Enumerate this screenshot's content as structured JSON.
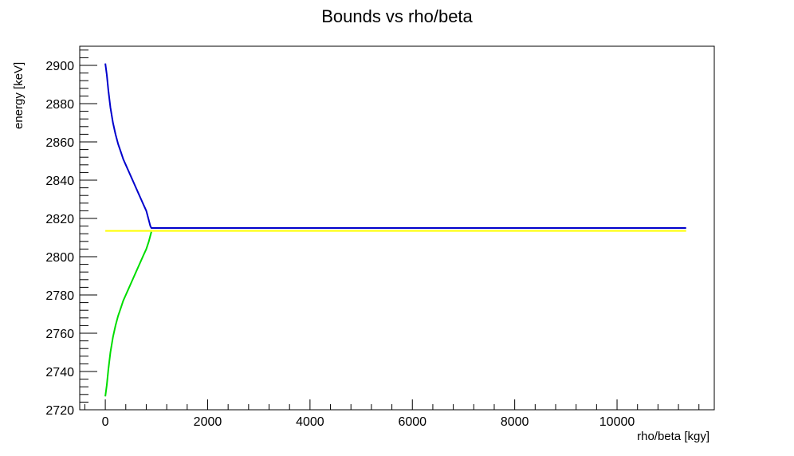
{
  "chart_data": {
    "type": "line",
    "title": "Bounds vs rho/beta",
    "xlabel": "rho/beta [kgy]",
    "ylabel": "energy [keV]",
    "xlim": [
      -500,
      11900
    ],
    "ylim": [
      2720,
      2910
    ],
    "x_ticks": [
      0,
      2000,
      4000,
      6000,
      8000,
      10000
    ],
    "y_ticks": [
      2720,
      2740,
      2760,
      2780,
      2800,
      2820,
      2840,
      2860,
      2880,
      2900
    ],
    "grid": false,
    "legend": "none",
    "series": [
      {
        "color": "#0000cc",
        "x": [
          0,
          30,
          60,
          100,
          150,
          200,
          250,
          300,
          350,
          400,
          450,
          500,
          550,
          600,
          650,
          700,
          750,
          800,
          850,
          880,
          900,
          1500,
          3000,
          5000,
          7000,
          9000,
          11350
        ],
        "y": [
          2901,
          2895,
          2887,
          2878,
          2870,
          2864,
          2859,
          2855,
          2851,
          2848,
          2845,
          2842,
          2839,
          2836,
          2833,
          2830,
          2827,
          2824,
          2819,
          2816,
          2815,
          2815,
          2815,
          2815,
          2815,
          2815,
          2815
        ]
      },
      {
        "color": "#00dd00",
        "x": [
          0,
          30,
          60,
          100,
          150,
          200,
          250,
          300,
          350,
          400,
          450,
          500,
          550,
          600,
          650,
          700,
          750,
          800,
          850,
          880,
          900
        ],
        "y": [
          2727,
          2733,
          2741,
          2750,
          2758,
          2764,
          2769,
          2773,
          2777,
          2780,
          2783,
          2786,
          2789,
          2792,
          2795,
          2798,
          2801,
          2804,
          2808,
          2811,
          2813
        ]
      },
      {
        "color": "#ffff00",
        "x": [
          0,
          11350
        ],
        "y": [
          2813.5,
          2813.5
        ]
      }
    ]
  }
}
